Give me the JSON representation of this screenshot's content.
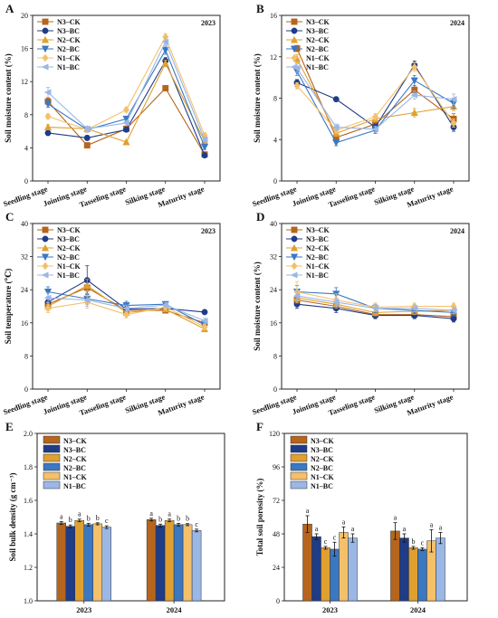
{
  "series_names": [
    "N3–CK",
    "N3–BC",
    "N2–CK",
    "N2–BC",
    "N1–CK",
    "N1–BC"
  ],
  "colors": [
    "#b5651d",
    "#1f3c88",
    "#e0a030",
    "#3a78c2",
    "#f4c06a",
    "#9ab7e6"
  ],
  "markers": [
    "square",
    "circle",
    "triangle-up",
    "triangle-down",
    "diamond",
    "left-triangle"
  ],
  "chart_data": [
    {
      "type": "line",
      "panel": "A",
      "year_label": "2023",
      "ylabel": "Soil moisture content (%)",
      "categories": [
        "Seedling stage",
        "Jointing stage",
        "Tasseling stage",
        "Silking stage",
        "Maturity stage"
      ],
      "ylim": [
        0,
        20
      ],
      "yticks": [
        0,
        4,
        8,
        12,
        16,
        20
      ],
      "series": [
        {
          "name": "N3–CK",
          "values": [
            9.6,
            4.3,
            6.3,
            11.2,
            3.2
          ],
          "errors": [
            0.4,
            0.2,
            0.2,
            0.3,
            0.2
          ]
        },
        {
          "name": "N3–BC",
          "values": [
            5.8,
            5.2,
            6.2,
            14.5,
            3.1
          ],
          "errors": [
            0.3,
            0.3,
            0.2,
            0.4,
            0.2
          ]
        },
        {
          "name": "N2–CK",
          "values": [
            6.5,
            6.3,
            4.7,
            14.2,
            4.8
          ],
          "errors": [
            0.3,
            0.2,
            0.2,
            0.4,
            0.3
          ]
        },
        {
          "name": "N2–BC",
          "values": [
            9.3,
            6.2,
            7.5,
            15.8,
            4.1
          ],
          "errors": [
            0.4,
            0.3,
            0.3,
            0.5,
            0.3
          ]
        },
        {
          "name": "N1–CK",
          "values": [
            7.8,
            6.2,
            8.6,
            17.4,
            5.5
          ],
          "errors": [
            0.3,
            0.2,
            0.3,
            0.4,
            0.3
          ]
        },
        {
          "name": "N1–BC",
          "values": [
            10.7,
            6.3,
            7.0,
            16.8,
            5.0
          ],
          "errors": [
            0.6,
            0.3,
            0.3,
            0.5,
            0.3
          ]
        }
      ]
    },
    {
      "type": "line",
      "panel": "B",
      "year_label": "2024",
      "ylabel": "Soil moisture content (%)",
      "categories": [
        "Seedling stage",
        "Jointing stage",
        "Tasseling stage",
        "Silking stage",
        "Maturity stage"
      ],
      "ylim": [
        0,
        16
      ],
      "yticks": [
        0,
        4,
        8,
        12,
        16
      ],
      "series": [
        {
          "name": "N3–CK",
          "values": [
            12.8,
            4.2,
            5.5,
            8.8,
            6.0
          ],
          "errors": [
            0.3,
            0.3,
            0.3,
            0.4,
            0.5
          ]
        },
        {
          "name": "N3–BC",
          "values": [
            9.5,
            7.9,
            5.2,
            11.2,
            5.2
          ],
          "errors": [
            0.3,
            0.2,
            0.3,
            0.4,
            0.4
          ]
        },
        {
          "name": "N2–CK",
          "values": [
            11.8,
            4.6,
            6.0,
            6.6,
            7.2
          ],
          "errors": [
            0.4,
            0.3,
            0.3,
            0.4,
            0.4
          ]
        },
        {
          "name": "N2–BC",
          "values": [
            10.6,
            3.7,
            4.9,
            9.7,
            7.5
          ],
          "errors": [
            0.4,
            0.3,
            0.3,
            0.5,
            0.5
          ]
        },
        {
          "name": "N1–CK",
          "values": [
            9.2,
            4.9,
            6.2,
            11.0,
            5.6
          ],
          "errors": [
            0.3,
            0.3,
            0.3,
            0.4,
            0.4
          ]
        },
        {
          "name": "N1–BC",
          "values": [
            10.9,
            5.2,
            5.0,
            8.3,
            7.9
          ],
          "errors": [
            0.4,
            0.3,
            0.3,
            0.4,
            0.5
          ]
        }
      ]
    },
    {
      "type": "line",
      "panel": "C",
      "year_label": "2023",
      "ylabel": "Soil temperature (℃)",
      "categories": [
        "Seedling stage",
        "Jointing stage",
        "Tasseling stage",
        "Silking stage",
        "Maturity stage"
      ],
      "ylim": [
        0,
        40
      ],
      "yticks": [
        0,
        8,
        16,
        24,
        32,
        40
      ],
      "series": [
        {
          "name": "N3–CK",
          "values": [
            20.5,
            24.5,
            19.0,
            19.0,
            16.0
          ],
          "errors": [
            1.0,
            1.5,
            0.8,
            0.6,
            0.6
          ]
        },
        {
          "name": "N3–BC",
          "values": [
            21.0,
            26.3,
            19.3,
            19.5,
            18.6
          ],
          "errors": [
            1.2,
            3.5,
            0.8,
            0.6,
            0.5
          ]
        },
        {
          "name": "N2–CK",
          "values": [
            20.0,
            25.0,
            18.5,
            19.3,
            14.5
          ],
          "errors": [
            1.0,
            1.5,
            0.8,
            0.6,
            0.6
          ]
        },
        {
          "name": "N2–BC",
          "values": [
            23.5,
            21.8,
            20.2,
            20.5,
            15.5
          ],
          "errors": [
            1.2,
            1.3,
            1.0,
            0.6,
            0.6
          ]
        },
        {
          "name": "N1–CK",
          "values": [
            19.5,
            21.0,
            18.0,
            19.8,
            15.0
          ],
          "errors": [
            1.0,
            1.5,
            0.8,
            0.6,
            0.6
          ]
        },
        {
          "name": "N1–BC",
          "values": [
            22.0,
            21.5,
            19.5,
            20.3,
            16.5
          ],
          "errors": [
            1.2,
            1.5,
            0.8,
            0.6,
            0.6
          ]
        }
      ]
    },
    {
      "type": "line",
      "panel": "D",
      "year_label": "2024",
      "ylabel": "Soil moisture content (%)",
      "categories": [
        "Seedling stage",
        "Jointing stage",
        "Tasseling stage",
        "Silking stage",
        "Maturity stage"
      ],
      "ylim": [
        0,
        40
      ],
      "yticks": [
        0,
        8,
        16,
        24,
        32,
        40
      ],
      "series": [
        {
          "name": "N3–CK",
          "values": [
            21.5,
            20.0,
            18.0,
            18.0,
            17.5
          ],
          "errors": [
            1.2,
            1.0,
            0.8,
            0.8,
            0.8
          ]
        },
        {
          "name": "N3–BC",
          "values": [
            20.5,
            19.5,
            17.8,
            17.8,
            17.0
          ],
          "errors": [
            1.0,
            1.0,
            0.8,
            0.8,
            0.8
          ]
        },
        {
          "name": "N2–CK",
          "values": [
            22.0,
            20.5,
            18.5,
            18.8,
            19.0
          ],
          "errors": [
            1.2,
            1.0,
            0.8,
            0.8,
            0.8
          ]
        },
        {
          "name": "N2–BC",
          "values": [
            23.5,
            23.0,
            19.5,
            19.0,
            18.5
          ],
          "errors": [
            1.5,
            1.5,
            1.0,
            0.8,
            0.8
          ]
        },
        {
          "name": "N1–CK",
          "values": [
            23.5,
            21.5,
            19.8,
            20.0,
            20.0
          ],
          "errors": [
            2.5,
            1.5,
            1.0,
            0.8,
            0.8
          ]
        },
        {
          "name": "N1–BC",
          "values": [
            22.5,
            21.0,
            19.5,
            19.5,
            19.0
          ],
          "errors": [
            1.2,
            1.0,
            0.8,
            0.8,
            0.8
          ]
        }
      ]
    },
    {
      "type": "bar",
      "panel": "E",
      "ylabel": "Soil bulk density (g cm⁻³)",
      "categories": [
        "2023",
        "2024"
      ],
      "ylim": [
        1.0,
        2.0
      ],
      "yticks": [
        1.0,
        1.2,
        1.4,
        1.6,
        1.8,
        2.0
      ],
      "tick_decimals": 1,
      "series": [
        {
          "name": "N3–CK",
          "values": [
            1.465,
            1.485
          ],
          "errors": [
            0.008,
            0.008
          ],
          "letters": [
            "a",
            "a"
          ]
        },
        {
          "name": "N3–BC",
          "values": [
            1.445,
            1.45
          ],
          "errors": [
            0.008,
            0.008
          ],
          "letters": [
            "b",
            "b"
          ]
        },
        {
          "name": "N2–CK",
          "values": [
            1.48,
            1.48
          ],
          "errors": [
            0.008,
            0.008
          ],
          "letters": [
            "a",
            "a"
          ]
        },
        {
          "name": "N2–BC",
          "values": [
            1.455,
            1.455
          ],
          "errors": [
            0.008,
            0.008
          ],
          "letters": [
            "b",
            "b"
          ]
        },
        {
          "name": "N1–CK",
          "values": [
            1.46,
            1.455
          ],
          "errors": [
            0.006,
            0.006
          ],
          "letters": [
            "b",
            "b"
          ]
        },
        {
          "name": "N1–BC",
          "values": [
            1.44,
            1.42
          ],
          "errors": [
            0.008,
            0.008
          ],
          "letters": [
            "c",
            "c"
          ]
        }
      ]
    },
    {
      "type": "bar",
      "panel": "F",
      "ylabel": "Total soil porosity (%)",
      "categories": [
        "2023",
        "2024"
      ],
      "ylim": [
        0,
        120
      ],
      "yticks": [
        0,
        24,
        48,
        72,
        96,
        120
      ],
      "tick_decimals": 0,
      "series": [
        {
          "name": "N3–CK",
          "values": [
            55,
            50
          ],
          "errors": [
            6,
            6
          ],
          "letters": [
            "a",
            "a"
          ]
        },
        {
          "name": "N3–BC",
          "values": [
            46,
            45
          ],
          "errors": [
            2,
            3
          ],
          "letters": [
            "a",
            "a"
          ]
        },
        {
          "name": "N2–CK",
          "values": [
            38,
            38
          ],
          "errors": [
            1,
            1
          ],
          "letters": [
            "c",
            "b"
          ]
        },
        {
          "name": "N2–BC",
          "values": [
            37,
            37
          ],
          "errors": [
            5,
            1
          ],
          "letters": [
            "c",
            "c"
          ]
        },
        {
          "name": "N1–CK",
          "values": [
            49,
            43
          ],
          "errors": [
            4,
            8
          ],
          "letters": [
            "a",
            "a"
          ]
        },
        {
          "name": "N1–BC",
          "values": [
            45,
            45
          ],
          "errors": [
            3,
            4
          ],
          "letters": [
            "a",
            "a"
          ]
        }
      ]
    }
  ]
}
